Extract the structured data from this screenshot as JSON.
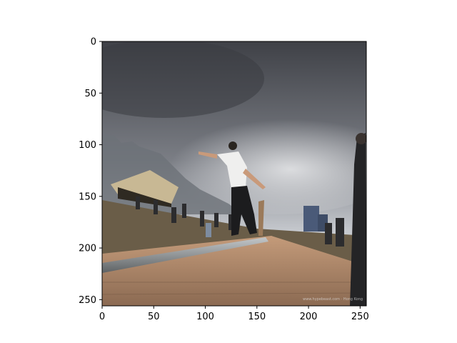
{
  "figure": {
    "image_description_icon": "skateboarder-photo",
    "x_ticks": [
      "0",
      "50",
      "100",
      "150",
      "200",
      "250"
    ],
    "y_ticks": [
      "0",
      "50",
      "100",
      "150",
      "200",
      "250"
    ],
    "x_tick_values": [
      0,
      50,
      100,
      150,
      200,
      250
    ],
    "y_tick_values": [
      0,
      50,
      100,
      150,
      200,
      250
    ],
    "xlim": [
      0,
      256
    ],
    "ylim": [
      0,
      256
    ],
    "watermark": "www.hypebeast.com · Hong Kong"
  },
  "colors": {
    "sky_dark": "#4a4c52",
    "sky_light": "#c9ccd1",
    "ground": "#6e6048",
    "ramp": "#b08a6a",
    "rail": "#8a8f92"
  }
}
